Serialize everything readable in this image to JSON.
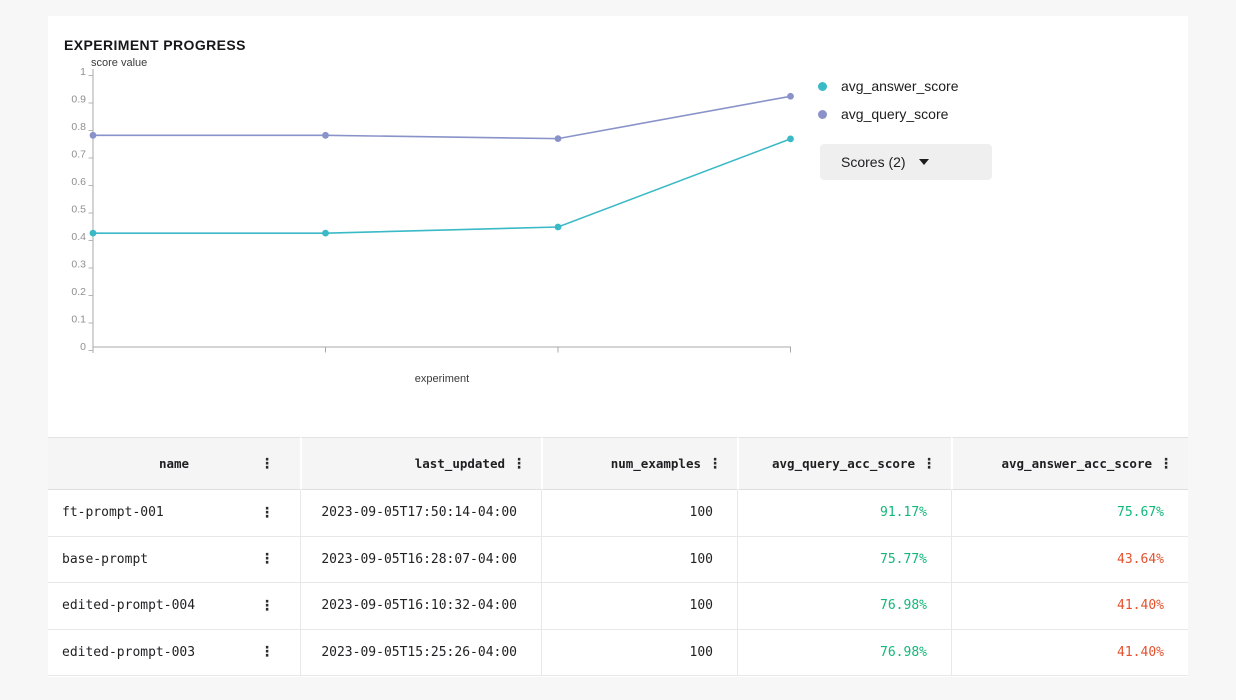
{
  "title": "EXPERIMENT PROGRESS",
  "chart_data": {
    "type": "line",
    "title": "EXPERIMENT PROGRESS",
    "xlabel": "experiment",
    "ylabel": "score value",
    "ylim": [
      0,
      1
    ],
    "ytick_labels": [
      "1",
      "0.9",
      "0.8",
      "0.7",
      "0.6",
      "0.5",
      "0.4",
      "0.3",
      "0.2",
      "0.1",
      "0"
    ],
    "grid": false,
    "legend_position": "right",
    "num_points": 4,
    "series": [
      {
        "name": "avg_answer_score",
        "color": "#3ab9c6",
        "values": [
          0.414,
          0.414,
          0.4364,
          0.7567
        ]
      },
      {
        "name": "avg_query_score",
        "color": "#8a93c9",
        "values": [
          0.7698,
          0.7698,
          0.7577,
          0.9117
        ]
      }
    ]
  },
  "scores_button": {
    "label": "Scores (2)"
  },
  "icons": {
    "kebab": "⋮"
  },
  "table": {
    "columns": [
      {
        "id": "name",
        "label": "name"
      },
      {
        "id": "last_updated",
        "label": "last_updated"
      },
      {
        "id": "num_examples",
        "label": "num_examples"
      },
      {
        "id": "avg_query_acc_score",
        "label": "avg_query_acc_score"
      },
      {
        "id": "avg_answer_acc_score",
        "label": "avg_answer_acc_score"
      }
    ],
    "rows": [
      {
        "name": "ft-prompt-001",
        "last_updated": "2023-09-05T17:50:14-04:00",
        "num_examples": "100",
        "avg_query_acc_score": {
          "text": "91.17%",
          "tone": "positive"
        },
        "avg_answer_acc_score": {
          "text": "75.67%",
          "tone": "positive"
        }
      },
      {
        "name": "base-prompt",
        "last_updated": "2023-09-05T16:28:07-04:00",
        "num_examples": "100",
        "avg_query_acc_score": {
          "text": "75.77%",
          "tone": "positive"
        },
        "avg_answer_acc_score": {
          "text": "43.64%",
          "tone": "negative"
        }
      },
      {
        "name": "edited-prompt-004",
        "last_updated": "2023-09-05T16:10:32-04:00",
        "num_examples": "100",
        "avg_query_acc_score": {
          "text": "76.98%",
          "tone": "positive"
        },
        "avg_answer_acc_score": {
          "text": "41.40%",
          "tone": "negative"
        }
      },
      {
        "name": "edited-prompt-003",
        "last_updated": "2023-09-05T15:25:26-04:00",
        "num_examples": "100",
        "avg_query_acc_score": {
          "text": "76.98%",
          "tone": "positive"
        },
        "avg_answer_acc_score": {
          "text": "41.40%",
          "tone": "negative"
        }
      }
    ],
    "tone_colors": {
      "positive": "#12b77b",
      "negative": "#e5512e"
    }
  },
  "colors": {
    "page_background": "#f7f7f8",
    "card_background": "#ffffff",
    "axis": "#a8a8a8",
    "tick_text": "#8f8f8f",
    "button_background": "#efeff0"
  }
}
